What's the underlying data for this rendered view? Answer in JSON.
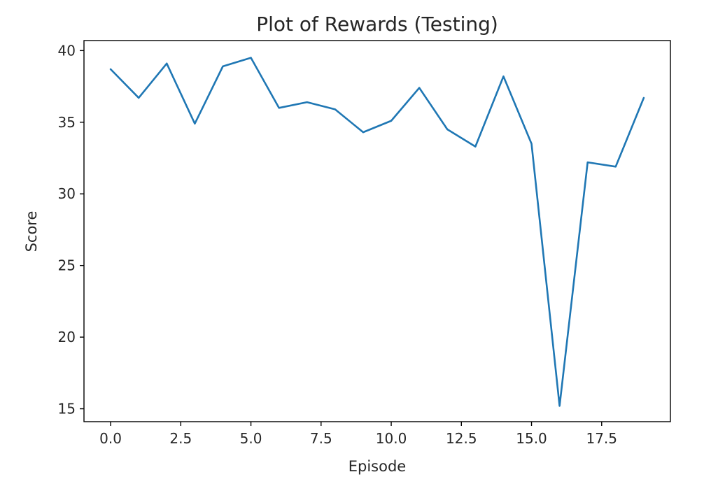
{
  "chart_data": {
    "type": "line",
    "title": "Plot of Rewards (Testing)",
    "xlabel": "Episode",
    "ylabel": "Score",
    "xlim": [
      -0.95,
      19.95
    ],
    "ylim": [
      14.1,
      40.7
    ],
    "x_ticks": [
      0.0,
      2.5,
      5.0,
      7.5,
      10.0,
      12.5,
      15.0,
      17.5
    ],
    "x_tick_labels": [
      "0.0",
      "2.5",
      "5.0",
      "7.5",
      "10.0",
      "12.5",
      "15.0",
      "17.5"
    ],
    "y_ticks": [
      15,
      20,
      25,
      30,
      35,
      40
    ],
    "y_tick_labels": [
      "15",
      "20",
      "25",
      "30",
      "35",
      "40"
    ],
    "grid": false,
    "legend": "none",
    "series": [
      {
        "color": "#1f77b4",
        "x": [
          0,
          1,
          2,
          3,
          4,
          5,
          6,
          7,
          8,
          9,
          10,
          11,
          12,
          13,
          14,
          15,
          16,
          17,
          18,
          19
        ],
        "y": [
          38.7,
          36.7,
          39.1,
          34.9,
          38.9,
          39.5,
          36.0,
          36.4,
          35.9,
          34.3,
          35.1,
          37.4,
          34.5,
          33.3,
          38.2,
          33.5,
          15.2,
          32.2,
          31.9,
          36.7
        ]
      }
    ]
  }
}
